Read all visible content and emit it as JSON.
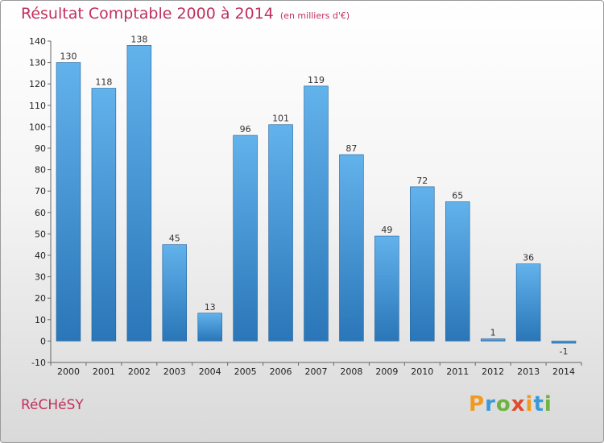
{
  "title": "Résultat Comptable 2000 à 2014",
  "unit": "(en milliers d'€)",
  "commune": "RéCHéSY",
  "brand": {
    "letters": [
      "P",
      "r",
      "o",
      "x",
      "i",
      "t",
      "i"
    ],
    "colors": [
      "#f29a1f",
      "#3a9ad9",
      "#6db33f",
      "#e04a2e",
      "#f29a1f",
      "#3a9ad9",
      "#6db33f"
    ]
  },
  "colors": {
    "bar_light": "#62b2ec",
    "bar_dark": "#2a76b8",
    "title": "#c0305c"
  },
  "chart_data": {
    "type": "bar",
    "categories": [
      "2000",
      "2001",
      "2002",
      "2003",
      "2004",
      "2005",
      "2006",
      "2007",
      "2008",
      "2009",
      "2010",
      "2011",
      "2012",
      "2013",
      "2014"
    ],
    "values": [
      130,
      118,
      138,
      45,
      13,
      96,
      101,
      119,
      87,
      49,
      72,
      65,
      1,
      36,
      -1
    ],
    "ylim": [
      -10,
      140
    ],
    "yticks": [
      -10,
      0,
      10,
      20,
      30,
      40,
      50,
      60,
      70,
      80,
      90,
      100,
      110,
      120,
      130,
      140
    ],
    "grid": false,
    "data_labels": true
  }
}
